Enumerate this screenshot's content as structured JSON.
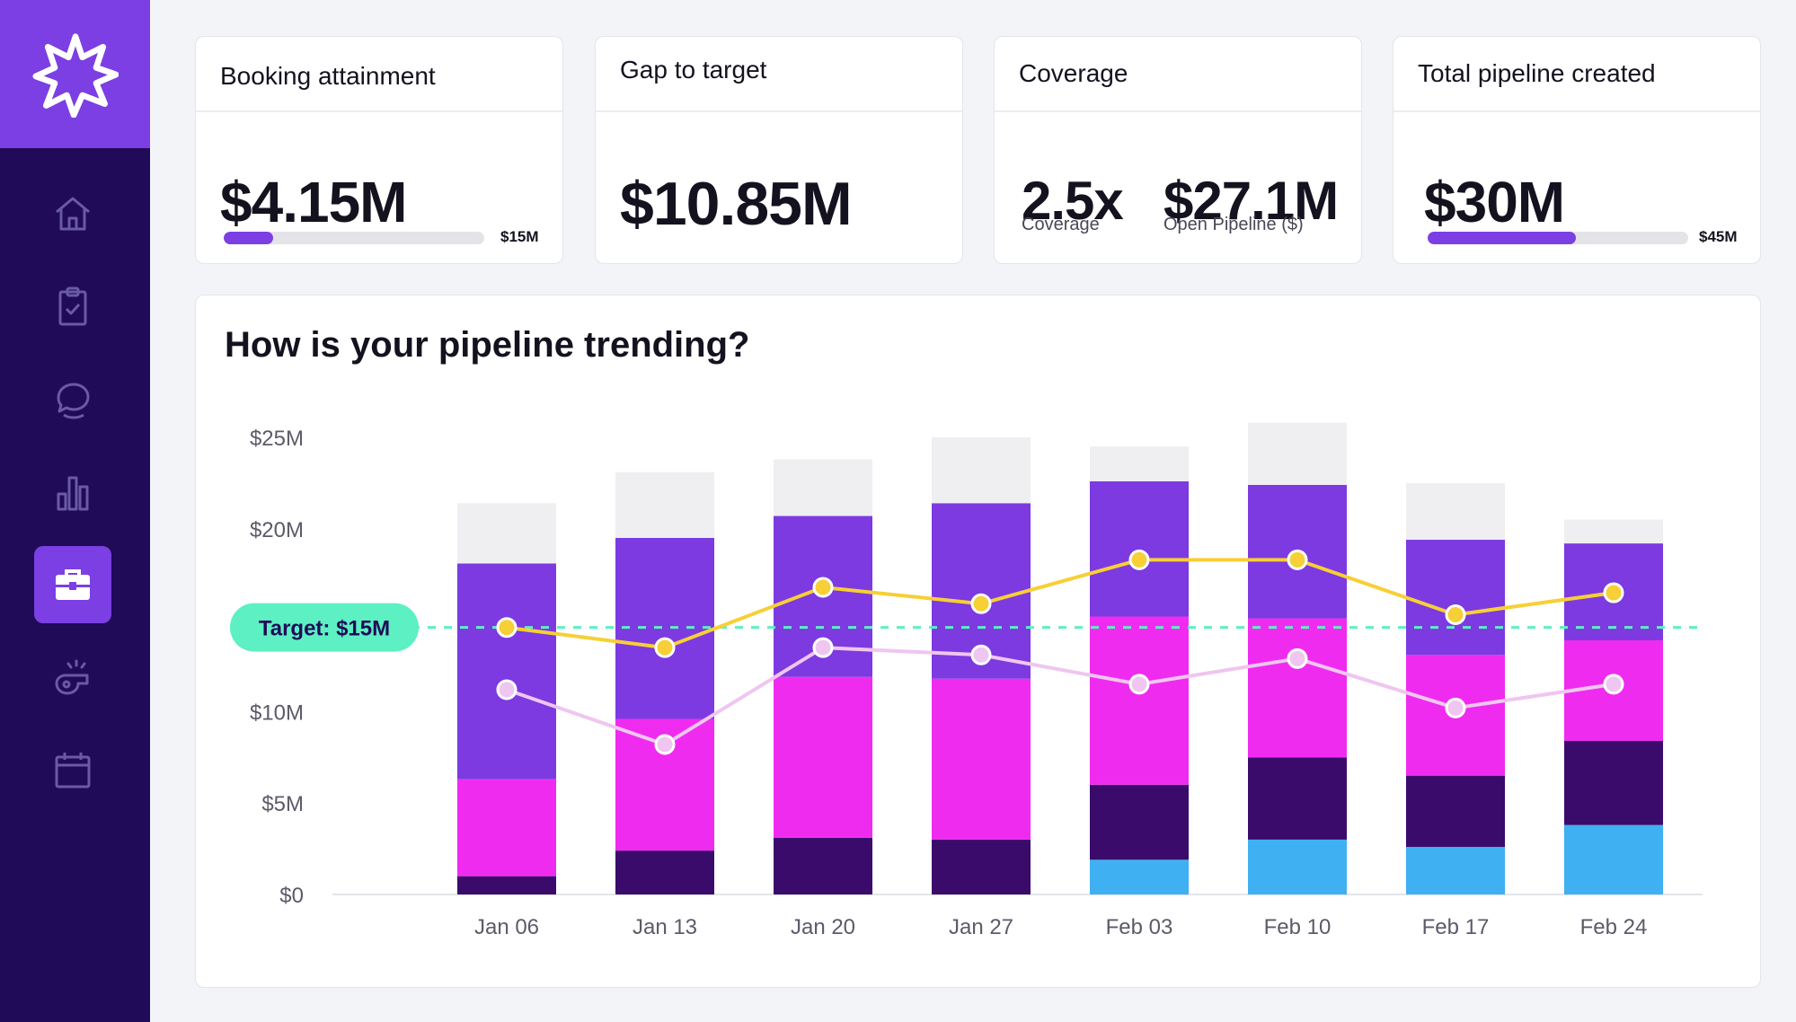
{
  "nav": {
    "items": [
      {
        "icon": "home-icon",
        "active": false
      },
      {
        "icon": "clipboard-check-icon",
        "active": false
      },
      {
        "icon": "chat-bubbles-icon",
        "active": false
      },
      {
        "icon": "bar-chart-icon",
        "active": false
      },
      {
        "icon": "briefcase-icon",
        "active": true
      },
      {
        "icon": "whistle-icon",
        "active": false
      },
      {
        "icon": "calendar-icon",
        "active": false
      }
    ]
  },
  "kpis": {
    "booking": {
      "title": "Booking attainment",
      "value": "$4.15M",
      "max_label": "$15M",
      "progress": 0.19
    },
    "gap": {
      "title": "Gap to target",
      "value": "$10.85M"
    },
    "coverage": {
      "title": "Coverage",
      "ratio": "2.5x",
      "ratio_label": "Coverage",
      "pipeline": "$27.1M",
      "pipeline_label": "Open Pipeline ($)"
    },
    "total": {
      "title": "Total pipeline created",
      "value": "$30M",
      "max_label": "$45M",
      "progress": 0.57
    }
  },
  "chart_title": "How is your pipeline trending?",
  "colors": {
    "light_grey": "#efeff2",
    "purple": "#7c3ae0",
    "magenta": "#f02bf0",
    "dark_purple": "#3a0b6b",
    "sky_blue": "#3fb0f2",
    "yellow_line": "#f7cf36",
    "pink_line": "#efc6f0",
    "target": "#5cf0c3"
  },
  "chart_data": {
    "type": "bar",
    "stacked": true,
    "categories": [
      "Jan 06",
      "Jan 13",
      "Jan 20",
      "Jan 27",
      "Feb 03",
      "Feb 10",
      "Feb 17",
      "Feb 24"
    ],
    "y_ticks": [
      "$25M",
      "$20M",
      "$10M",
      "$5M",
      "$0"
    ],
    "y_tick_values": [
      25,
      20,
      10,
      5,
      0
    ],
    "ylim": [
      0,
      25
    ],
    "series": [
      {
        "color": "#3fb0f2",
        "values": [
          0,
          0,
          0,
          0,
          1.9,
          3.0,
          2.6,
          3.8
        ]
      },
      {
        "color": "#3a0b6b",
        "values": [
          1.0,
          2.4,
          3.1,
          3.0,
          4.1,
          4.5,
          3.9,
          4.6
        ]
      },
      {
        "color": "#f02bf0",
        "values": [
          5.3,
          7.2,
          8.8,
          8.8,
          9.2,
          7.6,
          6.6,
          5.5
        ]
      },
      {
        "color": "#7c3ae0",
        "values": [
          11.8,
          9.9,
          8.8,
          9.6,
          7.4,
          7.3,
          6.3,
          5.3
        ]
      },
      {
        "color": "#efeff2",
        "values": [
          3.3,
          3.6,
          3.1,
          3.6,
          1.9,
          3.4,
          3.1,
          1.3
        ]
      }
    ],
    "lines": [
      {
        "color": "#f7cf36",
        "values": [
          14.6,
          13.5,
          16.8,
          15.9,
          18.3,
          18.3,
          15.3,
          16.5
        ]
      },
      {
        "color": "#efc6f0",
        "values": [
          11.2,
          8.2,
          13.5,
          13.1,
          11.5,
          12.9,
          10.2,
          11.5
        ]
      }
    ],
    "target": {
      "value": 15,
      "label": "Target: $15M"
    }
  }
}
